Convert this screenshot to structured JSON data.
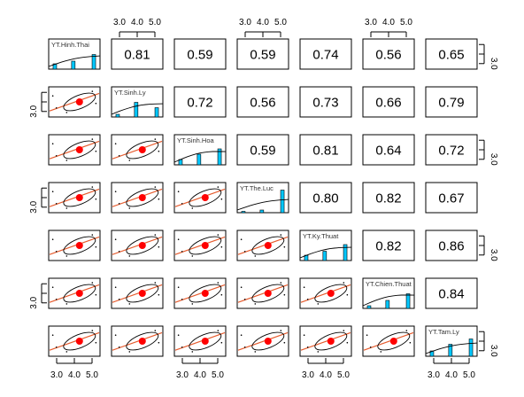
{
  "chart_data": {
    "type": "table",
    "variables": [
      "YT.Hinh.Thai",
      "YT.Sinh.Ly",
      "YT.Sinh.Hoa",
      "YT.The.Luc",
      "YT.Ky.Thuat",
      "YT.Chien.Thuat",
      "YT.Tam.Ly"
    ],
    "correlations": [
      [
        "",
        "0.81",
        "0.59",
        "0.59",
        "0.74",
        "0.56",
        "0.65"
      ],
      [
        "",
        "",
        "0.72",
        "0.56",
        "0.73",
        "0.66",
        "0.79"
      ],
      [
        "",
        "",
        "",
        "0.59",
        "0.81",
        "0.64",
        "0.72"
      ],
      [
        "",
        "",
        "",
        "",
        "0.80",
        "0.82",
        "0.67"
      ],
      [
        "",
        "",
        "",
        "",
        "",
        "0.82",
        "0.86"
      ],
      [
        "",
        "",
        "",
        "",
        "",
        "",
        "0.84"
      ],
      [
        "",
        "",
        "",
        "",
        "",
        "",
        ""
      ]
    ],
    "tick_labels": [
      "3.0",
      "4.0",
      "5.0"
    ],
    "axis_range": [
      2.7,
      5.3
    ],
    "colors": {
      "frame": "#000000",
      "histogram_bar": "#00c8ff",
      "regression_line": "#e65c2e",
      "mean_point": "#ff0000",
      "ellipse": "#000000"
    },
    "histograms": [
      [
        0.2,
        0.3,
        0.55
      ],
      [
        0.1,
        0.55,
        0.35
      ],
      [
        0.2,
        0.4,
        0.6
      ],
      [
        0.05,
        0.1,
        0.85
      ],
      [
        0.2,
        0.35,
        0.6
      ],
      [
        0.1,
        0.3,
        0.55
      ],
      [
        0.2,
        0.45,
        0.65
      ]
    ],
    "top_ticks_at_columns": [
      1,
      3,
      5
    ],
    "bottom_ticks_at_columns": [
      0,
      2,
      4,
      6
    ],
    "left_ticks_at_rows": [
      1,
      3,
      5
    ],
    "right_ticks_at_rows": [
      0,
      2,
      4,
      6
    ]
  }
}
